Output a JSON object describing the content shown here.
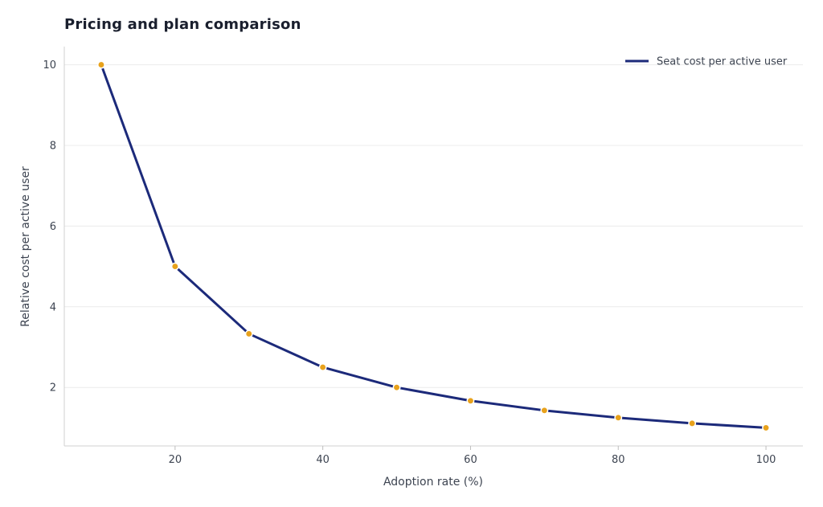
{
  "chart_data": {
    "type": "line",
    "title": "Pricing and plan comparison",
    "xlabel": "Adoption rate (%)",
    "ylabel": "Relative cost per active user",
    "xlim": [
      5,
      105
    ],
    "ylim": [
      0.55,
      10.45
    ],
    "x_ticks": [
      20,
      40,
      60,
      80,
      100
    ],
    "y_ticks": [
      2,
      4,
      6,
      8,
      10
    ],
    "grid": "horizontal",
    "legend_position": "top-right",
    "series": [
      {
        "name": "Seat cost per active user",
        "line_color": "#1c2a7a",
        "marker_color": "#e8a21c",
        "x": [
          10,
          20,
          30,
          40,
          50,
          60,
          70,
          80,
          90,
          100
        ],
        "y": [
          10,
          5,
          3.33,
          2.5,
          2,
          1.67,
          1.43,
          1.25,
          1.11,
          1
        ]
      }
    ]
  }
}
